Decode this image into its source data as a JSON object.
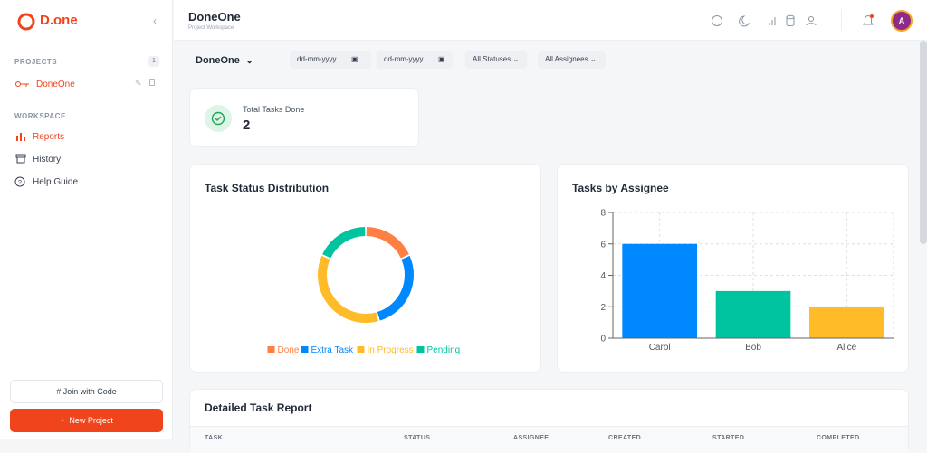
{
  "sidebar": {
    "logo": "D.one",
    "projects_label": "PROJECTS",
    "project_count": 1,
    "projects": [
      {
        "name": "DoneOne"
      }
    ],
    "workspace_label": "WORKSPACE",
    "nav": [
      "Reports",
      "History",
      "Help Guide"
    ],
    "join_button": "Join with Code",
    "new_button": "New Project"
  },
  "header": {
    "title": "DoneOne",
    "subtitle": "Project Workspace",
    "avatar": "A"
  },
  "filters": {
    "project": "DoneOne",
    "date_from": "dd-mm-yyyy",
    "date_to": "dd-mm-yyyy",
    "status": "All Statuses",
    "assignee": "All Assignees"
  },
  "summary": {
    "label": "Total Tasks Done",
    "value": 2
  },
  "chart_data": [
    {
      "type": "donut",
      "title": "Task Status Distribution",
      "categories": [
        "Done",
        "Extra Task",
        "In Progress",
        "Pending"
      ],
      "values": [
        2,
        3,
        4,
        2
      ],
      "colors": [
        "#ff8042",
        "#0088fe",
        "#ffbb28",
        "#00c49f"
      ],
      "legend": "bottom"
    },
    {
      "type": "bar",
      "title": "Tasks by Assignee",
      "categories": [
        "Carol",
        "Bob",
        "Alice"
      ],
      "values": [
        6,
        3,
        2
      ],
      "colors": [
        "#0088fe",
        "#00c49f",
        "#ffbb28"
      ],
      "ylim": [
        0,
        8
      ],
      "yticks": [
        0,
        2,
        4,
        6,
        8
      ],
      "grid": true
    }
  ],
  "table": {
    "title": "Detailed Task Report",
    "columns": [
      "TASK",
      "STATUS",
      "ASSIGNEE",
      "CREATED",
      "STARTED",
      "COMPLETED"
    ]
  }
}
